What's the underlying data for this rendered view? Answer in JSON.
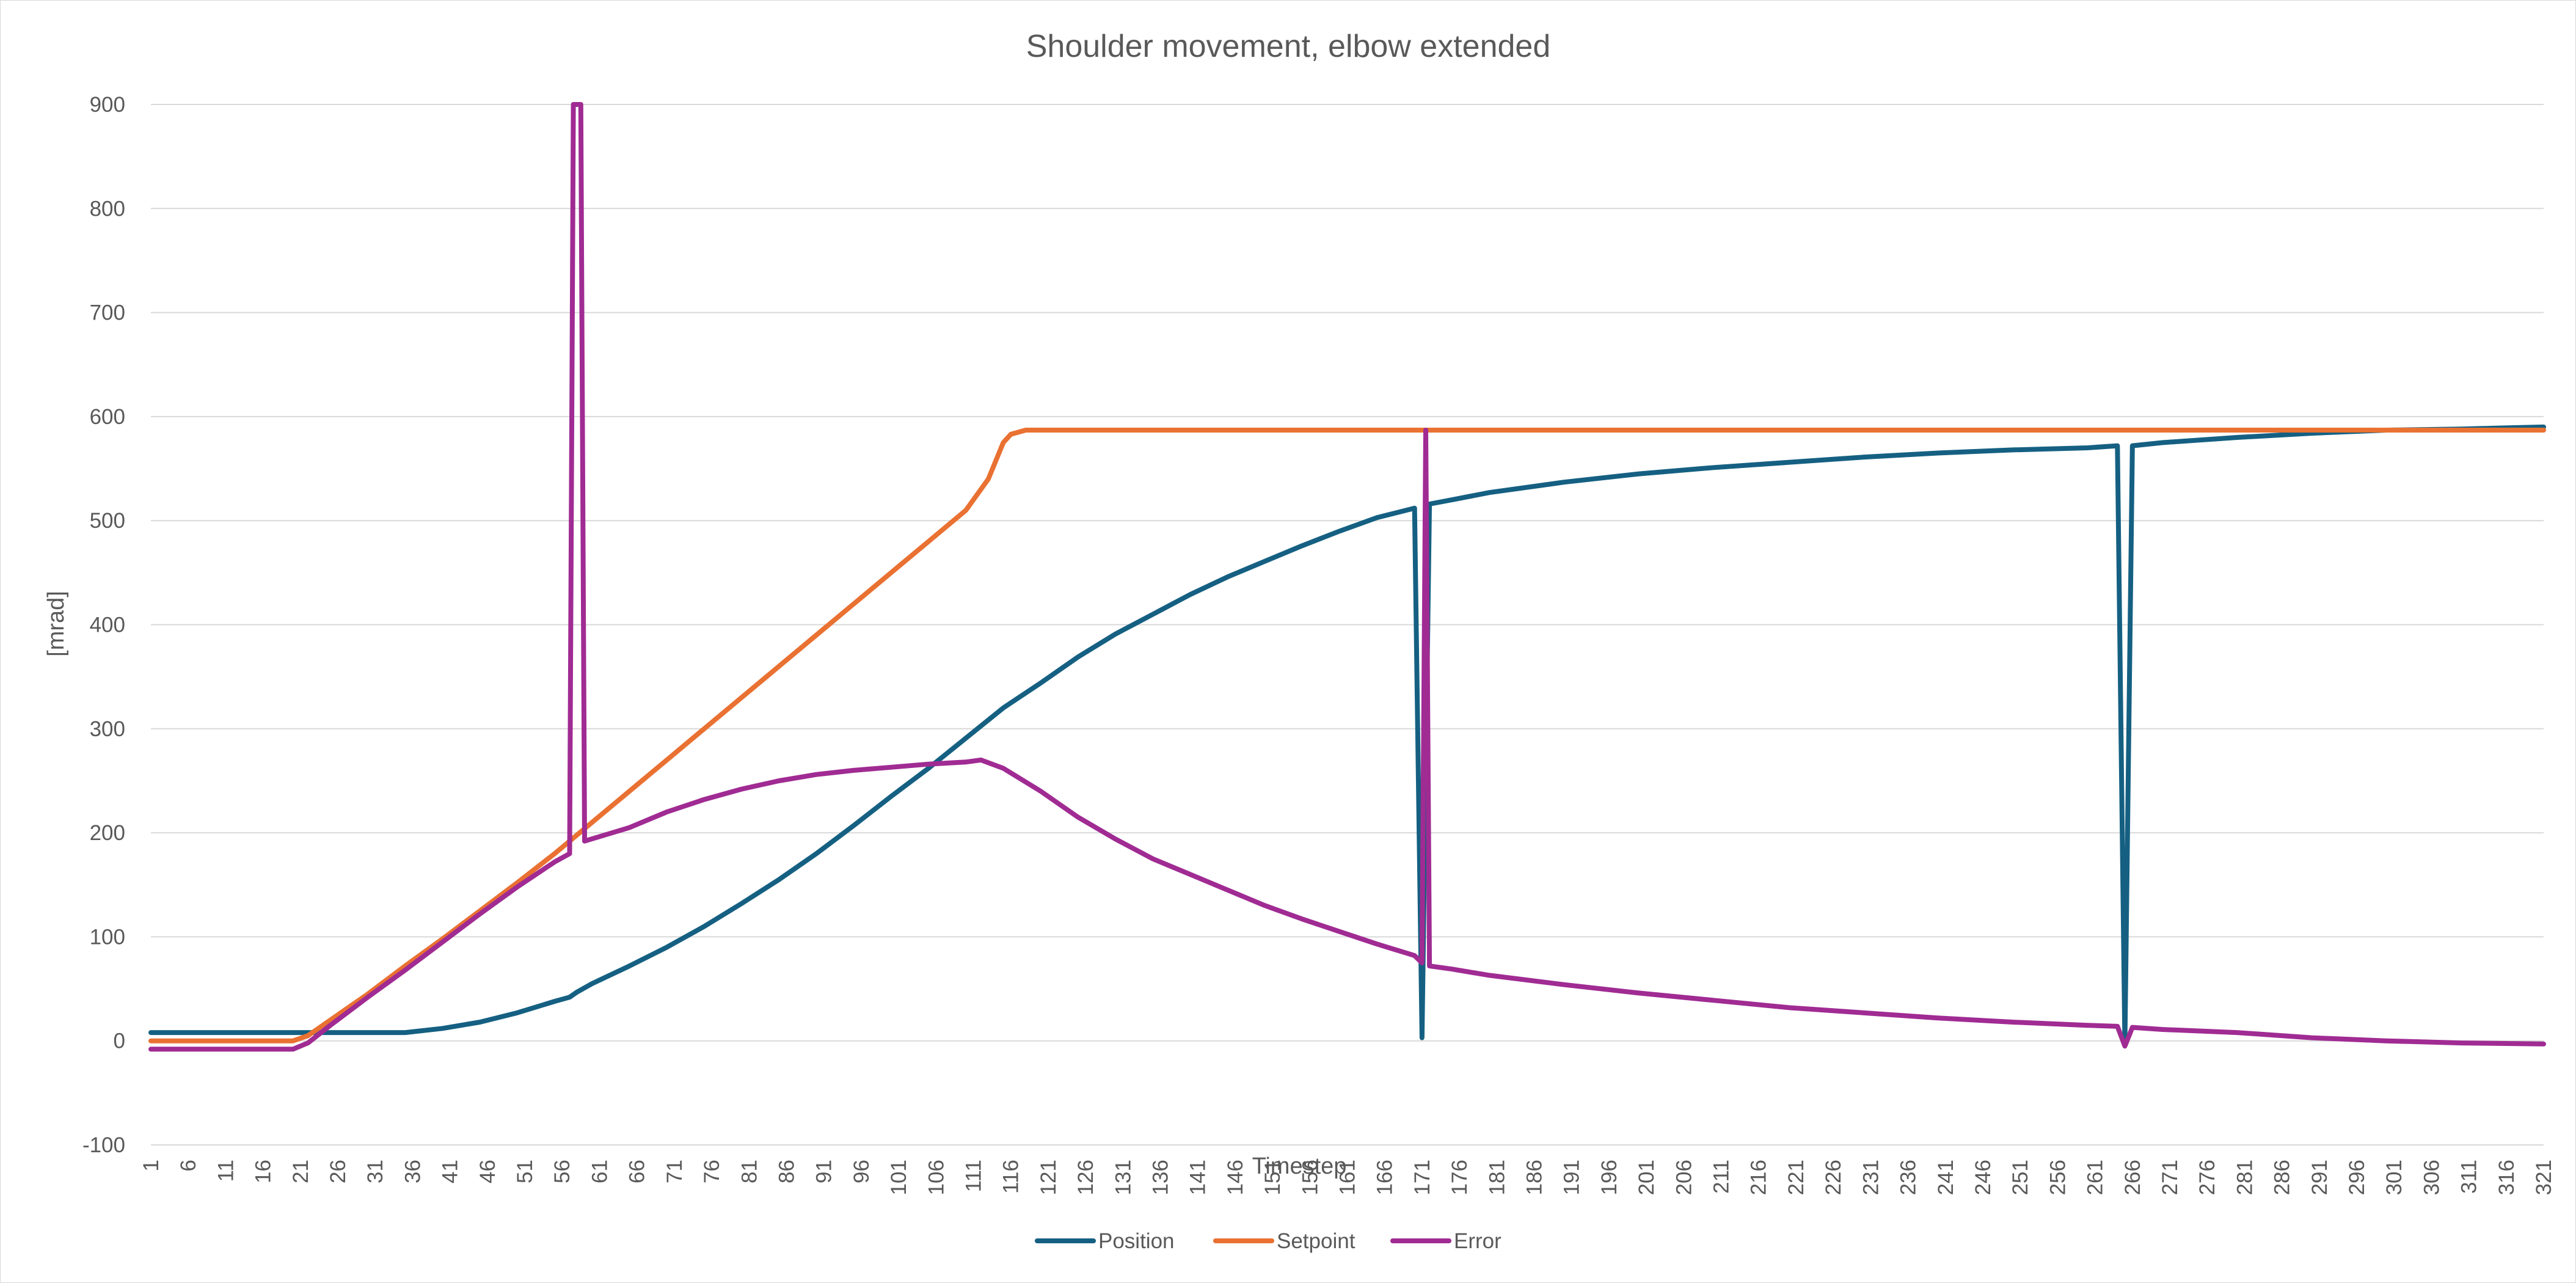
{
  "chart_data": {
    "type": "line",
    "title": "Shoulder movement, elbow extended",
    "xlabel": "Timestep",
    "ylabel": "[mrad]",
    "x_range": [
      1,
      321
    ],
    "x_tick_labels": [
      "1",
      "6",
      "11",
      "16",
      "21",
      "26",
      "31",
      "36",
      "41",
      "46",
      "51",
      "56",
      "61",
      "66",
      "71",
      "76",
      "81",
      "86",
      "91",
      "96",
      "101",
      "106",
      "111",
      "116",
      "121",
      "126",
      "131",
      "136",
      "141",
      "146",
      "151",
      "156",
      "161",
      "166",
      "171",
      "176",
      "181",
      "186",
      "191",
      "196",
      "201",
      "206",
      "211",
      "216",
      "221",
      "226",
      "231",
      "236",
      "241",
      "246",
      "251",
      "256",
      "261",
      "266",
      "271",
      "276",
      "281",
      "286",
      "291",
      "296",
      "301",
      "306",
      "311",
      "316",
      "321"
    ],
    "ylim": [
      -100,
      900
    ],
    "y_ticks": [
      -100,
      0,
      100,
      200,
      300,
      400,
      500,
      600,
      700,
      800,
      900
    ],
    "grid": "horizontal",
    "legend_position": "bottom",
    "series": [
      {
        "name": "Position",
        "color": "#156082",
        "points": [
          [
            1,
            8
          ],
          [
            20,
            8
          ],
          [
            30,
            8
          ],
          [
            35,
            8
          ],
          [
            40,
            12
          ],
          [
            45,
            18
          ],
          [
            50,
            27
          ],
          [
            55,
            38
          ],
          [
            57,
            42
          ],
          [
            58,
            47
          ],
          [
            60,
            55
          ],
          [
            65,
            72
          ],
          [
            70,
            90
          ],
          [
            75,
            110
          ],
          [
            80,
            132
          ],
          [
            85,
            155
          ],
          [
            90,
            180
          ],
          [
            95,
            207
          ],
          [
            100,
            235
          ],
          [
            105,
            262
          ],
          [
            110,
            291
          ],
          [
            115,
            320
          ],
          [
            120,
            344
          ],
          [
            125,
            369
          ],
          [
            130,
            391
          ],
          [
            135,
            410
          ],
          [
            140,
            429
          ],
          [
            145,
            446
          ],
          [
            150,
            461
          ],
          [
            155,
            476
          ],
          [
            160,
            490
          ],
          [
            165,
            503
          ],
          [
            170,
            512
          ],
          [
            171,
            3
          ],
          [
            172,
            516
          ],
          [
            175,
            520
          ],
          [
            180,
            527
          ],
          [
            190,
            537
          ],
          [
            200,
            545
          ],
          [
            210,
            551
          ],
          [
            220,
            556
          ],
          [
            230,
            561
          ],
          [
            240,
            565
          ],
          [
            250,
            568
          ],
          [
            260,
            570
          ],
          [
            264,
            572
          ],
          [
            265,
            -3
          ],
          [
            266,
            572
          ],
          [
            270,
            575
          ],
          [
            280,
            580
          ],
          [
            290,
            584
          ],
          [
            300,
            587
          ],
          [
            310,
            588
          ],
          [
            315,
            589
          ],
          [
            321,
            590
          ]
        ]
      },
      {
        "name": "Setpoint",
        "color": "#E97132",
        "points": [
          [
            1,
            0
          ],
          [
            20,
            0
          ],
          [
            22,
            5
          ],
          [
            25,
            20
          ],
          [
            30,
            45
          ],
          [
            35,
            72
          ],
          [
            40,
            98
          ],
          [
            45,
            125
          ],
          [
            50,
            152
          ],
          [
            55,
            180
          ],
          [
            60,
            210
          ],
          [
            65,
            240
          ],
          [
            70,
            270
          ],
          [
            75,
            300
          ],
          [
            80,
            330
          ],
          [
            85,
            360
          ],
          [
            90,
            390
          ],
          [
            95,
            420
          ],
          [
            100,
            450
          ],
          [
            105,
            480
          ],
          [
            110,
            510
          ],
          [
            113,
            540
          ],
          [
            115,
            575
          ],
          [
            116,
            583
          ],
          [
            118,
            587
          ],
          [
            321,
            587
          ]
        ]
      },
      {
        "name": "Error",
        "color": "#A02B93",
        "points": [
          [
            1,
            -8
          ],
          [
            20,
            -8
          ],
          [
            22,
            -2
          ],
          [
            25,
            15
          ],
          [
            30,
            42
          ],
          [
            35,
            68
          ],
          [
            40,
            95
          ],
          [
            45,
            122
          ],
          [
            50,
            148
          ],
          [
            55,
            172
          ],
          [
            57,
            180
          ],
          [
            57.5,
            910
          ],
          [
            58.5,
            910
          ],
          [
            59,
            192
          ],
          [
            65,
            205
          ],
          [
            70,
            220
          ],
          [
            75,
            232
          ],
          [
            80,
            242
          ],
          [
            85,
            250
          ],
          [
            90,
            256
          ],
          [
            95,
            260
          ],
          [
            100,
            263
          ],
          [
            105,
            266
          ],
          [
            110,
            268
          ],
          [
            112,
            270
          ],
          [
            115,
            262
          ],
          [
            120,
            240
          ],
          [
            125,
            215
          ],
          [
            130,
            194
          ],
          [
            135,
            175
          ],
          [
            140,
            160
          ],
          [
            145,
            145
          ],
          [
            150,
            130
          ],
          [
            155,
            117
          ],
          [
            160,
            105
          ],
          [
            165,
            93
          ],
          [
            170,
            82
          ],
          [
            171,
            75
          ],
          [
            171.5,
            587
          ],
          [
            172,
            72
          ],
          [
            175,
            69
          ],
          [
            180,
            63
          ],
          [
            190,
            54
          ],
          [
            200,
            46
          ],
          [
            210,
            39
          ],
          [
            220,
            32
          ],
          [
            230,
            27
          ],
          [
            240,
            22
          ],
          [
            250,
            18
          ],
          [
            260,
            15
          ],
          [
            264,
            14
          ],
          [
            265,
            -5
          ],
          [
            266,
            13
          ],
          [
            270,
            11
          ],
          [
            280,
            8
          ],
          [
            290,
            3
          ],
          [
            300,
            0
          ],
          [
            310,
            -2
          ],
          [
            321,
            -3
          ]
        ]
      }
    ]
  }
}
